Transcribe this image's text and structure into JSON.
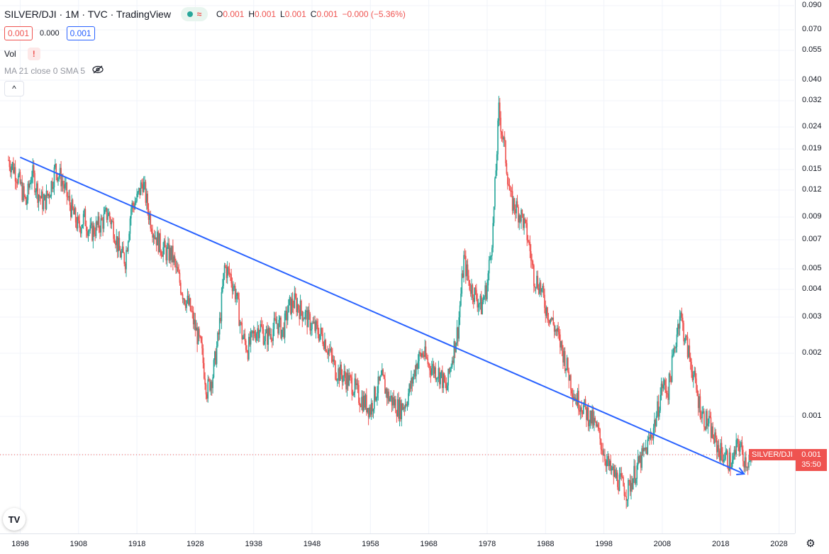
{
  "legend": {
    "title": "SILVER/DJI · 1M · TVC · TradingView",
    "ohlc": [
      {
        "k": "O",
        "v": "0.001"
      },
      {
        "k": "H",
        "v": "0.001"
      },
      {
        "k": "L",
        "v": "0.001"
      },
      {
        "k": "C",
        "v": "0.001"
      },
      {
        "k": "",
        "v": "−0.000 (−5.36%)"
      }
    ],
    "sell_price": "0.001",
    "spread": "0.000",
    "buy_price": "0.001",
    "volume_label": "Vol",
    "warning": "!",
    "ma_label": "MA 21 close 0 SMA 5",
    "wave_glyph": "≈",
    "collapse_glyph": "^"
  },
  "price_label": {
    "symbol": "SILVER/DJI",
    "value": "0.001",
    "countdown": "35:50"
  },
  "logo_text": "TV",
  "settings_icon": "gear-icon",
  "colors": {
    "up": "#26a69a",
    "down": "#ef5350",
    "trendline": "#2962ff",
    "price_line": "#ef5350"
  },
  "chart_data": {
    "type": "candlestick",
    "scale": "log",
    "symbol": "SILVER/DJI",
    "interval": "1M",
    "y_ticks": [
      "0.090",
      "0.070",
      "0.055",
      "0.040",
      "0.032",
      "0.024",
      "0.019",
      "0.015",
      "0.012",
      "0.009",
      "0.007",
      "0.005",
      "0.004",
      "0.003",
      "0.002",
      "0.001",
      "0.001"
    ],
    "x_ticks": [
      "1898",
      "1908",
      "1918",
      "1928",
      "1938",
      "1948",
      "1958",
      "1968",
      "1978",
      "1988",
      "1998",
      "2008",
      "2018",
      "2028"
    ],
    "series": [
      {
        "x": [
          1896,
          1897,
          1898,
          1899,
          1900,
          1901,
          1902,
          1903,
          1904,
          1905,
          1906,
          1907,
          1908,
          1909,
          1910,
          1911,
          1912,
          1913,
          1914,
          1915,
          1916,
          1917,
          1918,
          1919,
          1920,
          1921,
          1922,
          1923,
          1924,
          1925,
          1926,
          1927,
          1928,
          1929,
          1930,
          1931,
          1932,
          1933,
          1934,
          1935,
          1936,
          1937,
          1938,
          1939,
          1940,
          1941,
          1942,
          1943,
          1944,
          1945,
          1946,
          1947,
          1948,
          1949,
          1950,
          1951,
          1952,
          1953,
          1954,
          1955,
          1956,
          1957,
          1958,
          1959,
          1960,
          1961,
          1962,
          1963,
          1964,
          1965,
          1966,
          1967,
          1968,
          1969,
          1970,
          1971,
          1972,
          1973,
          1974,
          1975,
          1976,
          1977,
          1978,
          1979,
          1980,
          1981,
          1982,
          1983,
          1984,
          1985,
          1986,
          1987,
          1988,
          1989,
          1990,
          1991,
          1992,
          1993,
          1994,
          1995,
          1996,
          1997,
          1998,
          1999,
          2000,
          2001,
          2002,
          2003,
          2004,
          2005,
          2006,
          2007,
          2008,
          2009,
          2010,
          2011,
          2012,
          2013,
          2014,
          2015,
          2016,
          2017,
          2018,
          2019,
          2020,
          2021,
          2022,
          2023
        ],
        "y": [
          0.018,
          0.0165,
          0.014,
          0.0115,
          0.016,
          0.013,
          0.0115,
          0.013,
          0.0165,
          0.015,
          0.0125,
          0.0105,
          0.009,
          0.01,
          0.0085,
          0.009,
          0.0095,
          0.0105,
          0.009,
          0.007,
          0.0065,
          0.011,
          0.012,
          0.0145,
          0.0105,
          0.0085,
          0.0075,
          0.007,
          0.0068,
          0.0055,
          0.0045,
          0.004,
          0.0032,
          0.0026,
          0.0017,
          0.002,
          0.003,
          0.006,
          0.0055,
          0.0045,
          0.003,
          0.0026,
          0.003,
          0.0033,
          0.0029,
          0.0031,
          0.0034,
          0.0031,
          0.004,
          0.0042,
          0.0039,
          0.0036,
          0.0033,
          0.0031,
          0.0029,
          0.0025,
          0.0021,
          0.002,
          0.0019,
          0.0018,
          0.0016,
          0.0015,
          0.0014,
          0.0017,
          0.0019,
          0.0016,
          0.0015,
          0.0014,
          0.0015,
          0.0018,
          0.0023,
          0.0025,
          0.0022,
          0.0021,
          0.002,
          0.0017,
          0.0024,
          0.0032,
          0.0065,
          0.005,
          0.0045,
          0.004,
          0.005,
          0.009,
          0.03,
          0.02,
          0.012,
          0.011,
          0.01,
          0.008,
          0.0055,
          0.005,
          0.004,
          0.0035,
          0.003,
          0.0025,
          0.002,
          0.0016,
          0.0015,
          0.00135,
          0.00125,
          0.0011,
          0.0009,
          0.00075,
          0.0007,
          0.00065,
          0.0006,
          0.0007,
          0.0008,
          0.0009,
          0.00105,
          0.0013,
          0.0018,
          0.0017,
          0.0025,
          0.0038,
          0.0028,
          0.0022,
          0.0016,
          0.0013,
          0.0012,
          0.001,
          0.0009,
          0.00085,
          0.0008,
          0.001,
          0.00085,
          0.0008
        ]
      }
    ],
    "trendline": {
      "x": [
        1898,
        2022
      ],
      "y": [
        0.0185,
        0.00072
      ]
    },
    "last_price": 0.001
  }
}
